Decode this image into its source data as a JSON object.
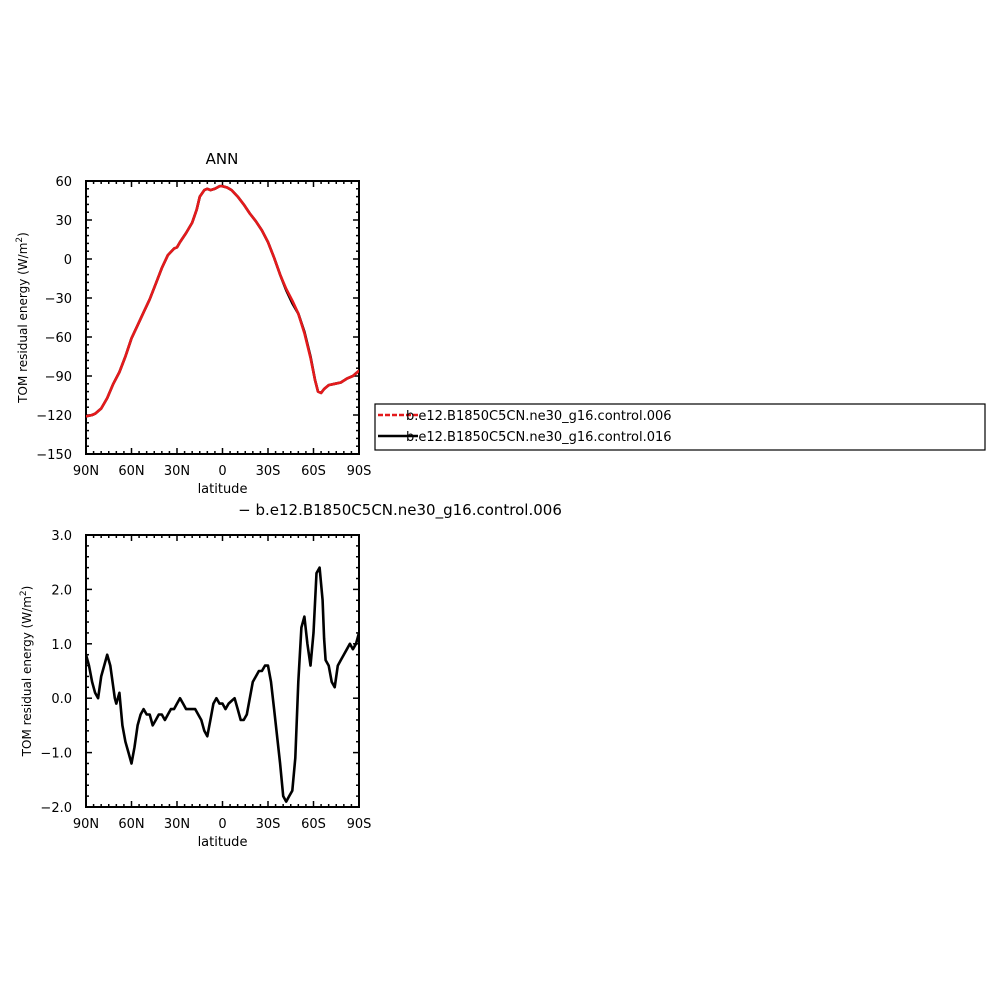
{
  "chart_data": [
    {
      "type": "line",
      "title": "ANN",
      "xlabel": "latitude",
      "ylabel": "TOM residual energy (W/m²)",
      "ylabel_main": "TOM residual energy (W/m",
      "ylabel_sup": "2",
      "ylabel_end": ")",
      "xlim": [
        90,
        -90
      ],
      "ylim": [
        -150,
        60
      ],
      "x_ticks": [
        90,
        60,
        30,
        0,
        -30,
        -60,
        -90
      ],
      "x_tick_labels": [
        "90N",
        "60N",
        "30N",
        "0",
        "30S",
        "60S",
        "90S"
      ],
      "y_ticks": [
        -150,
        -120,
        -90,
        -60,
        -30,
        0,
        30,
        60
      ],
      "y_tick_labels": [
        "−150",
        "−120",
        "−90",
        "−60",
        "−30",
        "0",
        "30",
        "60"
      ],
      "legend": {
        "placement": "right",
        "entries": [
          {
            "label": "b.e12.B1850C5CN.ne30_g16.control.006",
            "color": "#e41a1c",
            "style": "dashed"
          },
          {
            "label": "b.e12.B1850C5CN.ne30_g16.control.016",
            "color": "#000000",
            "style": "solid"
          }
        ]
      },
      "series": [
        {
          "name": "b.e12.B1850C5CN.ne30_g16.control.016",
          "color": "#000000",
          "x": [
            90,
            86,
            84,
            80,
            76,
            72,
            68,
            64,
            60,
            56,
            52,
            48,
            44,
            40,
            36,
            32,
            30,
            28,
            24,
            20,
            17,
            15,
            12,
            10,
            8,
            5,
            2,
            0,
            -3,
            -6,
            -10,
            -14,
            -18,
            -22,
            -26,
            -30,
            -34,
            -38,
            -42,
            -46,
            -50,
            -54,
            -58,
            -61,
            -63,
            -65,
            -67,
            -70,
            -74,
            -78,
            -82,
            -86,
            -90
          ],
          "y": [
            -121,
            -120,
            -119,
            -115,
            -107,
            -96,
            -87,
            -75,
            -61,
            -51,
            -41,
            -31,
            -19,
            -7,
            3,
            8,
            9,
            13,
            20,
            28,
            38,
            48,
            53,
            54,
            53,
            54,
            56,
            56,
            55,
            53,
            48,
            42,
            35,
            29,
            22,
            13,
            1,
            -12,
            -24,
            -34,
            -42,
            -56,
            -75,
            -93,
            -102,
            -103,
            -100,
            -97,
            -96,
            -95,
            -92,
            -90,
            -86
          ]
        },
        {
          "name": "b.e12.B1850C5CN.ne30_g16.control.006",
          "color": "#e41a1c",
          "x": [
            90,
            86,
            84,
            80,
            76,
            72,
            68,
            64,
            60,
            56,
            52,
            48,
            44,
            40,
            36,
            32,
            30,
            28,
            24,
            20,
            17,
            15,
            12,
            10,
            8,
            5,
            2,
            0,
            -3,
            -6,
            -10,
            -14,
            -18,
            -22,
            -26,
            -30,
            -34,
            -38,
            -42,
            -46,
            -50,
            -54,
            -58,
            -61,
            -63,
            -65,
            -67,
            -70,
            -74,
            -78,
            -82,
            -86,
            -90
          ],
          "y": [
            -121,
            -120,
            -119,
            -115,
            -107,
            -96,
            -87,
            -75,
            -61,
            -51,
            -41,
            -31,
            -19,
            -7,
            3,
            8,
            9,
            13,
            20,
            28,
            38,
            48,
            53,
            54,
            53,
            54,
            56,
            56,
            55,
            53,
            48,
            42,
            35,
            29,
            22,
            13,
            1,
            -12,
            -23,
            -32,
            -42,
            -57,
            -76,
            -93,
            -102,
            -103,
            -100,
            -97,
            -96,
            -95,
            -92,
            -90,
            -86
          ]
        }
      ]
    },
    {
      "type": "line",
      "title": "− b.e12.B1850C5CN.ne30_g16.control.006",
      "xlabel": "latitude",
      "ylabel": "TOM residual energy (W/m²)",
      "ylabel_main": "TOM residual energy (W/m",
      "ylabel_sup": "2",
      "ylabel_end": ")",
      "xlim": [
        90,
        -90
      ],
      "ylim": [
        -2.0,
        3.0
      ],
      "x_ticks": [
        90,
        60,
        30,
        0,
        -30,
        -60,
        -90
      ],
      "x_tick_labels": [
        "90N",
        "60N",
        "30N",
        "0",
        "30S",
        "60S",
        "90S"
      ],
      "y_ticks": [
        -2,
        -1,
        0,
        1,
        2,
        3
      ],
      "y_tick_labels": [
        "−2.0",
        "−1.0",
        "0.0",
        "1.0",
        "2.0",
        "3.0"
      ],
      "series": [
        {
          "color": "#000000",
          "x": [
            90,
            88,
            86,
            84,
            82,
            80,
            78,
            76,
            74,
            72,
            71,
            70,
            68,
            66,
            64,
            62,
            60,
            58,
            56,
            54,
            52,
            50,
            48,
            46,
            44,
            42,
            40,
            38,
            36,
            34,
            32,
            30,
            28,
            26,
            24,
            22,
            20,
            18,
            16,
            14,
            12,
            10,
            8,
            6,
            4,
            2,
            0,
            -2,
            -4,
            -6,
            -8,
            -10,
            -12,
            -14,
            -16,
            -18,
            -20,
            -22,
            -24,
            -26,
            -28,
            -30,
            -32,
            -34,
            -36,
            -38,
            -40,
            -42,
            -44,
            -46,
            -48,
            -50,
            -52,
            -54,
            -56,
            -58,
            -60,
            -62,
            -64,
            -66,
            -67,
            -68,
            -70,
            -72,
            -74,
            -76,
            -78,
            -80,
            -82,
            -84,
            -86,
            -88,
            -90
          ],
          "y": [
            0.8,
            0.6,
            0.3,
            0.1,
            0.0,
            0.4,
            0.6,
            0.8,
            0.6,
            0.2,
            0.0,
            -0.1,
            0.1,
            -0.5,
            -0.8,
            -1.0,
            -1.2,
            -0.9,
            -0.5,
            -0.3,
            -0.2,
            -0.3,
            -0.3,
            -0.5,
            -0.4,
            -0.3,
            -0.3,
            -0.4,
            -0.3,
            -0.2,
            -0.2,
            -0.1,
            0.0,
            -0.1,
            -0.2,
            -0.2,
            -0.2,
            -0.2,
            -0.3,
            -0.4,
            -0.6,
            -0.7,
            -0.4,
            -0.1,
            0.0,
            -0.1,
            -0.1,
            -0.2,
            -0.1,
            -0.05,
            0.0,
            -0.2,
            -0.4,
            -0.4,
            -0.3,
            0.0,
            0.3,
            0.4,
            0.5,
            0.5,
            0.6,
            0.6,
            0.3,
            -0.2,
            -0.7,
            -1.2,
            -1.8,
            -1.9,
            -1.8,
            -1.7,
            -1.1,
            0.3,
            1.3,
            1.5,
            1.0,
            0.6,
            1.2,
            2.3,
            2.4,
            1.8,
            1.1,
            0.7,
            0.6,
            0.3,
            0.2,
            0.6,
            0.7,
            0.8,
            0.9,
            1.0,
            0.9,
            1.0,
            1.2
          ]
        }
      ]
    }
  ]
}
